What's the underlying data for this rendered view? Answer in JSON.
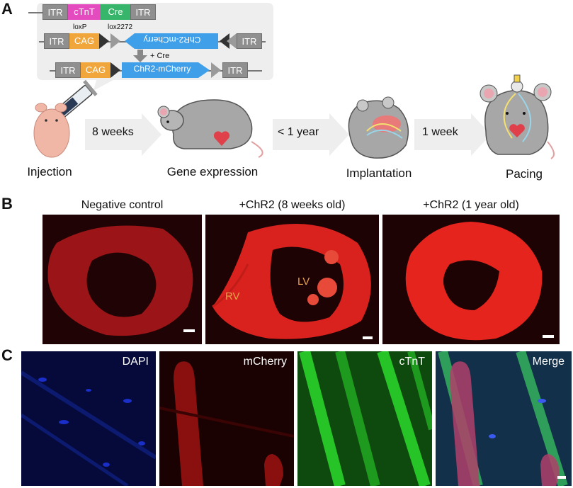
{
  "panels": {
    "a": "A",
    "b": "B",
    "c": "C"
  },
  "construct": {
    "row1": [
      "ITR",
      "cTnT",
      "Cre",
      "ITR"
    ],
    "row2": [
      "ITR",
      "CAG",
      "ChR2-mCherry",
      "ITR"
    ],
    "row3": [
      "ITR",
      "CAG",
      "ChR2-mCherry",
      "ITR"
    ],
    "loxP": "loxP",
    "lox2272": "lox2272",
    "plus_cre": "+ Cre"
  },
  "stages": {
    "injection": "Injection",
    "gene_expression": "Gene expression",
    "implantation": "Implantation",
    "pacing": "Pacing"
  },
  "steps": {
    "s1": "8 weeks",
    "s2": "< 1 year",
    "s3": "1 week"
  },
  "panel_b": {
    "titles": [
      "Negative control",
      "+ChR2 (8 weeks  old)",
      "+ChR2 (1 year old)"
    ],
    "rv": "RV",
    "lv": "LV"
  },
  "panel_c": {
    "titles": [
      "DAPI",
      "mCherry",
      "cTnT",
      "Merge"
    ]
  },
  "colors": {
    "itr": "#8f8f8f",
    "ctnt": "#e44bbe",
    "cre": "#37b56a",
    "cag": "#f1a63c",
    "chr2": "#3f9fe8",
    "heart_red": "#e0201a",
    "dapi_blue": "#1a2ec8",
    "ctnt_green": "#1faa1f"
  },
  "icons": [
    "syringe-icon",
    "mouse-icon",
    "heart-icon",
    "mouse-implant-icon",
    "mouse-pacing-icon"
  ]
}
